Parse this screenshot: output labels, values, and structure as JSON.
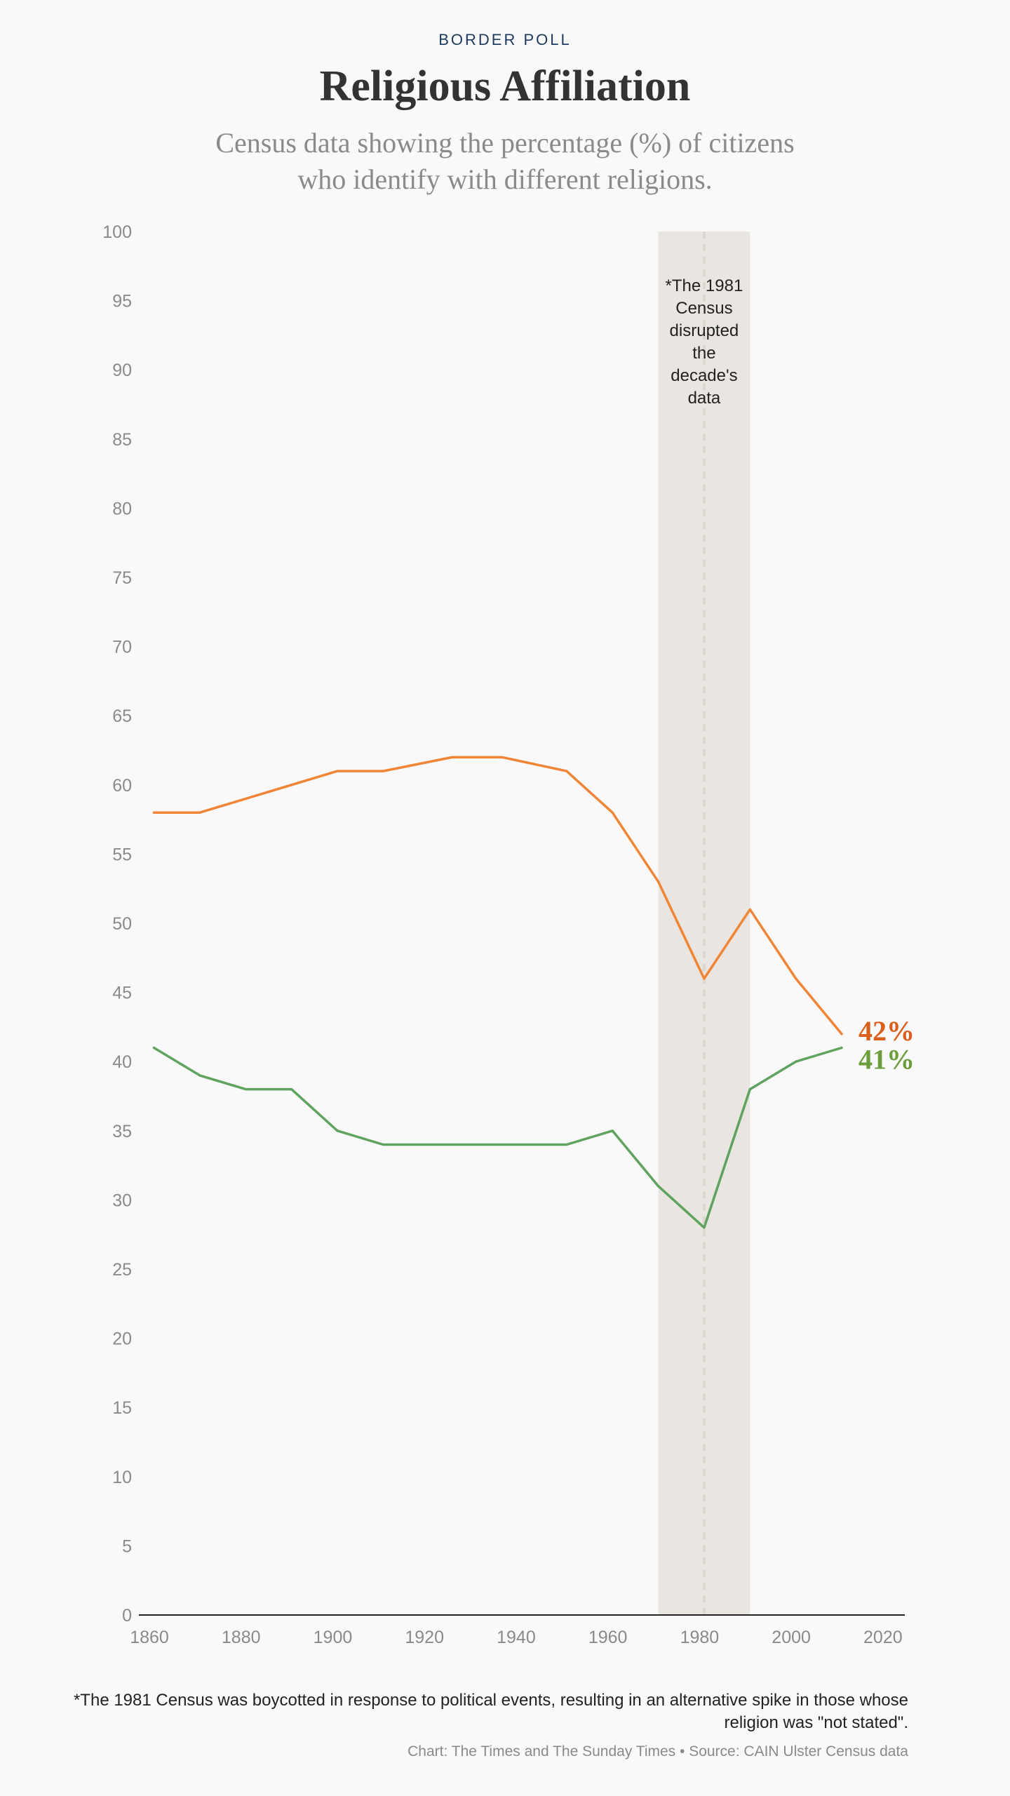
{
  "header": {
    "kicker": "BORDER POLL",
    "title": "Religious Affiliation",
    "subtitle": "Census data showing the percentage (%) of citizens who identify with different religions."
  },
  "chart_data": {
    "type": "line",
    "x_ticks": [
      1860,
      1880,
      1900,
      1920,
      1940,
      1960,
      1980,
      2000,
      2020
    ],
    "y_ticks": [
      0,
      5,
      10,
      15,
      20,
      25,
      30,
      35,
      40,
      45,
      50,
      55,
      60,
      65,
      70,
      75,
      80,
      85,
      90,
      95,
      100
    ],
    "xlim": [
      1860,
      2024
    ],
    "ylim": [
      0,
      100
    ],
    "grid": false,
    "series": [
      {
        "color": "#ef8535",
        "end_label": "42%",
        "label_color": "#d95f1a",
        "points": [
          [
            1861,
            58
          ],
          [
            1871,
            58
          ],
          [
            1881,
            59
          ],
          [
            1891,
            60
          ],
          [
            1901,
            61
          ],
          [
            1911,
            61
          ],
          [
            1926,
            62
          ],
          [
            1937,
            62
          ],
          [
            1951,
            61
          ],
          [
            1961,
            58
          ],
          [
            1971,
            53
          ],
          [
            1981,
            46
          ],
          [
            1991,
            51
          ],
          [
            2001,
            46
          ],
          [
            2011,
            42
          ]
        ]
      },
      {
        "color": "#5fa35f",
        "end_label": "41%",
        "label_color": "#6b9e3a",
        "points": [
          [
            1861,
            41
          ],
          [
            1871,
            39
          ],
          [
            1881,
            38
          ],
          [
            1891,
            38
          ],
          [
            1901,
            35
          ],
          [
            1911,
            34
          ],
          [
            1926,
            34
          ],
          [
            1937,
            34
          ],
          [
            1951,
            34
          ],
          [
            1961,
            35
          ],
          [
            1971,
            31
          ],
          [
            1981,
            28
          ],
          [
            1991,
            38
          ],
          [
            2001,
            40
          ],
          [
            2011,
            41
          ]
        ]
      }
    ],
    "highlight": {
      "x_range": [
        1971,
        1991
      ],
      "marker_x": 1981,
      "color": "#e9e5e0",
      "annotation": [
        "*The 1981",
        "Census",
        "disrupted",
        "the",
        "decade's",
        "data"
      ]
    }
  },
  "footer": {
    "note": "*The 1981 Census was boycotted in response to political events, resulting in an alternative spike in those whose religion was \"not stated\".",
    "credit": "Chart: The Times and The Sunday Times • Source: CAIN Ulster Census data"
  }
}
